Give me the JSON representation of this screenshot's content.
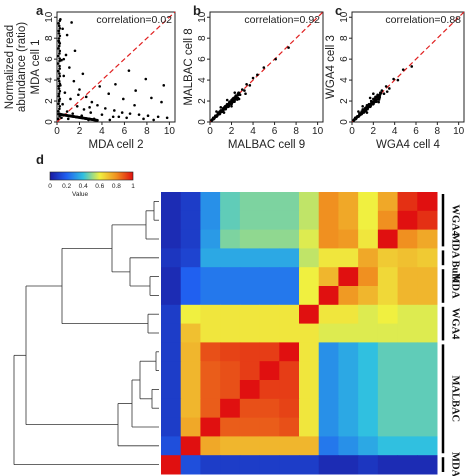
{
  "chart_data": [
    {
      "type": "scatter",
      "panel": "a",
      "annotation": "correlation=0.02",
      "xlabel": "MDA cell 2",
      "ylabel": "MDA cell 1",
      "ylabel2": "Normalized read",
      "ylabel3": "abundance (ratio)",
      "xlim": [
        0,
        10.5
      ],
      "ylim": [
        0,
        10.5
      ],
      "xticks": [
        0,
        2,
        4,
        6,
        8,
        10
      ],
      "yticks": [
        0,
        2,
        4,
        6,
        8,
        10
      ],
      "points": [
        [
          0.3,
          9.8
        ],
        [
          0.5,
          8.9
        ],
        [
          0.2,
          7.6
        ],
        [
          0.8,
          6.4
        ],
        [
          0.4,
          5.9
        ],
        [
          1.1,
          5.2
        ],
        [
          0.6,
          4.4
        ],
        [
          1.5,
          3.9
        ],
        [
          0.3,
          3.5
        ],
        [
          2.0,
          3.1
        ],
        [
          0.7,
          2.8
        ],
        [
          2.6,
          2.4
        ],
        [
          1.2,
          2.2
        ],
        [
          3.1,
          1.9
        ],
        [
          0.5,
          1.7
        ],
        [
          3.6,
          1.6
        ],
        [
          1.8,
          1.5
        ],
        [
          4.3,
          1.3
        ],
        [
          2.4,
          1.2
        ],
        [
          5.1,
          1.1
        ],
        [
          0.9,
          1.0
        ],
        [
          5.8,
          0.9
        ],
        [
          3.0,
          0.9
        ],
        [
          6.5,
          0.8
        ],
        [
          1.4,
          0.8
        ],
        [
          7.3,
          0.7
        ],
        [
          4.0,
          0.7
        ],
        [
          8.1,
          0.6
        ],
        [
          2.2,
          0.6
        ],
        [
          9.0,
          0.5
        ],
        [
          5.0,
          0.5
        ],
        [
          9.8,
          0.4
        ],
        [
          0.4,
          0.4
        ],
        [
          6.2,
          0.4
        ],
        [
          3.3,
          0.3
        ],
        [
          7.7,
          0.3
        ],
        [
          1.0,
          0.3
        ],
        [
          8.6,
          0.2
        ],
        [
          4.7,
          0.2
        ],
        [
          2.8,
          0.2
        ],
        [
          5.5,
          0.5
        ],
        [
          6.9,
          1.6
        ],
        [
          8.4,
          2.3
        ],
        [
          7.0,
          3.0
        ],
        [
          9.3,
          1.9
        ],
        [
          4.6,
          2.7
        ],
        [
          5.9,
          2.2
        ],
        [
          3.8,
          3.4
        ],
        [
          2.3,
          4.6
        ],
        [
          1.6,
          6.8
        ],
        [
          0.9,
          8.3
        ],
        [
          1.3,
          9.5
        ],
        [
          7.9,
          4.1
        ],
        [
          9.5,
          3.5
        ],
        [
          6.4,
          4.9
        ],
        [
          5.2,
          3.6
        ],
        [
          0.6,
          6.0
        ],
        [
          1.9,
          2.6
        ],
        [
          2.9,
          1.4
        ],
        [
          0.2,
          2.1
        ]
      ],
      "diagonal": true
    },
    {
      "type": "scatter",
      "panel": "b",
      "annotation": "correlation=0.92",
      "xlabel": "MALBAC cell 9",
      "ylabel": "MALBAC cell 8",
      "xlim": [
        0,
        10.5
      ],
      "ylim": [
        0,
        10.5
      ],
      "xticks": [
        0,
        2,
        4,
        6,
        8,
        10
      ],
      "yticks": [
        0,
        2,
        4,
        6,
        8,
        10
      ],
      "points": [
        [
          0.3,
          0.4
        ],
        [
          0.5,
          0.6
        ],
        [
          0.7,
          0.7
        ],
        [
          0.8,
          0.9
        ],
        [
          0.9,
          1.0
        ],
        [
          1.0,
          1.1
        ],
        [
          1.1,
          1.0
        ],
        [
          1.2,
          1.3
        ],
        [
          1.3,
          1.2
        ],
        [
          1.4,
          1.5
        ],
        [
          1.5,
          1.4
        ],
        [
          1.6,
          1.7
        ],
        [
          1.7,
          1.6
        ],
        [
          1.8,
          1.9
        ],
        [
          1.9,
          1.8
        ],
        [
          2.0,
          2.1
        ],
        [
          2.1,
          1.9
        ],
        [
          2.2,
          2.3
        ],
        [
          2.3,
          2.2
        ],
        [
          2.4,
          2.5
        ],
        [
          2.5,
          2.3
        ],
        [
          2.6,
          2.7
        ],
        [
          2.8,
          2.6
        ],
        [
          3.0,
          3.1
        ],
        [
          3.2,
          3.0
        ],
        [
          3.4,
          3.6
        ],
        [
          3.7,
          3.5
        ],
        [
          4.0,
          4.2
        ],
        [
          4.4,
          4.5
        ],
        [
          5.0,
          5.2
        ],
        [
          6.1,
          6.0
        ],
        [
          7.3,
          7.1
        ],
        [
          1.0,
          1.4
        ],
        [
          1.3,
          0.9
        ],
        [
          1.6,
          2.1
        ],
        [
          2.0,
          1.5
        ],
        [
          2.3,
          2.8
        ],
        [
          2.7,
          2.2
        ],
        [
          0.6,
          1.0
        ],
        [
          3.3,
          2.7
        ]
      ],
      "diagonal": true
    },
    {
      "type": "scatter",
      "panel": "c",
      "annotation": "correlation=0.88",
      "xlabel": "WGA4 cell 4",
      "ylabel": "WGA4 cell 3",
      "xlim": [
        0,
        10.5
      ],
      "ylim": [
        0,
        10.5
      ],
      "xticks": [
        0,
        2,
        4,
        6,
        8,
        10
      ],
      "yticks": [
        0,
        2,
        4,
        6,
        8,
        10
      ],
      "points": [
        [
          0.3,
          0.4
        ],
        [
          0.5,
          0.5
        ],
        [
          0.7,
          0.8
        ],
        [
          0.8,
          0.7
        ],
        [
          0.9,
          1.0
        ],
        [
          1.0,
          1.2
        ],
        [
          1.1,
          0.9
        ],
        [
          1.2,
          1.3
        ],
        [
          1.3,
          1.1
        ],
        [
          1.4,
          1.6
        ],
        [
          1.5,
          1.4
        ],
        [
          1.6,
          1.7
        ],
        [
          1.7,
          1.5
        ],
        [
          1.8,
          2.0
        ],
        [
          1.9,
          1.8
        ],
        [
          2.0,
          2.2
        ],
        [
          2.1,
          1.9
        ],
        [
          2.2,
          2.4
        ],
        [
          2.3,
          2.1
        ],
        [
          2.4,
          2.6
        ],
        [
          2.6,
          2.4
        ],
        [
          2.8,
          3.0
        ],
        [
          3.0,
          2.7
        ],
        [
          3.2,
          3.4
        ],
        [
          3.5,
          3.2
        ],
        [
          3.9,
          4.1
        ],
        [
          4.3,
          4.0
        ],
        [
          4.8,
          5.0
        ],
        [
          5.6,
          5.3
        ],
        [
          1.0,
          1.5
        ],
        [
          1.4,
          0.9
        ],
        [
          2.0,
          2.7
        ],
        [
          2.5,
          1.9
        ],
        [
          0.6,
          1.0
        ],
        [
          1.7,
          2.3
        ],
        [
          3.3,
          2.9
        ]
      ],
      "diagonal": true
    },
    {
      "type": "heatmap",
      "panel": "d",
      "legend_ticks": [
        "0",
        "0.2",
        "0.4",
        "0.6",
        "0.8",
        "1"
      ],
      "legend_label": "Value",
      "group_labels": [
        "WGA4",
        "MDA Bulk",
        "MDA",
        "WGA4",
        "MALBAC",
        "MDA"
      ],
      "col_blocks": [
        1,
        1,
        1,
        1,
        1,
        1,
        1,
        1,
        1,
        1,
        1,
        1,
        1,
        1
      ],
      "matrix": [
        [
          0.05,
          0.1,
          0.3,
          0.45,
          0.48,
          0.48,
          0.48,
          0.55,
          0.8,
          0.75,
          0.6,
          0.75,
          0.95,
          1.0
        ],
        [
          0.05,
          0.1,
          0.3,
          0.45,
          0.48,
          0.48,
          0.48,
          0.55,
          0.8,
          0.75,
          0.6,
          0.8,
          1.0,
          0.95
        ],
        [
          0.05,
          0.1,
          0.32,
          0.48,
          0.5,
          0.5,
          0.5,
          0.58,
          0.8,
          0.78,
          0.62,
          1.0,
          0.8,
          0.75
        ],
        [
          0.08,
          0.12,
          0.35,
          0.35,
          0.35,
          0.35,
          0.35,
          0.55,
          0.62,
          0.62,
          0.75,
          0.68,
          0.7,
          0.68
        ],
        [
          0.05,
          0.2,
          0.25,
          0.25,
          0.25,
          0.25,
          0.25,
          0.6,
          0.72,
          1.0,
          0.8,
          0.65,
          0.72,
          0.72
        ],
        [
          0.05,
          0.2,
          0.25,
          0.25,
          0.25,
          0.25,
          0.25,
          0.6,
          1.0,
          0.78,
          0.72,
          0.65,
          0.72,
          0.72
        ],
        [
          0.1,
          0.6,
          0.62,
          0.62,
          0.62,
          0.62,
          0.62,
          1.0,
          0.62,
          0.62,
          0.58,
          0.6,
          0.58,
          0.58
        ],
        [
          0.1,
          0.7,
          0.62,
          0.62,
          0.62,
          0.62,
          0.62,
          0.62,
          0.58,
          0.58,
          0.58,
          0.58,
          0.58,
          0.58
        ],
        [
          0.1,
          0.72,
          0.9,
          0.92,
          0.93,
          0.93,
          1.0,
          0.62,
          0.3,
          0.35,
          0.4,
          0.45,
          0.45,
          0.45
        ],
        [
          0.1,
          0.72,
          0.88,
          0.9,
          0.93,
          1.0,
          0.93,
          0.62,
          0.3,
          0.35,
          0.4,
          0.45,
          0.45,
          0.45
        ],
        [
          0.1,
          0.72,
          0.88,
          0.9,
          1.0,
          0.93,
          0.93,
          0.62,
          0.3,
          0.35,
          0.4,
          0.45,
          0.45,
          0.45
        ],
        [
          0.1,
          0.72,
          0.88,
          1.0,
          0.9,
          0.9,
          0.92,
          0.62,
          0.3,
          0.35,
          0.4,
          0.45,
          0.45,
          0.45
        ],
        [
          0.1,
          0.75,
          1.0,
          0.88,
          0.88,
          0.88,
          0.9,
          0.62,
          0.3,
          0.35,
          0.4,
          0.45,
          0.45,
          0.45
        ],
        [
          0.15,
          1.0,
          0.75,
          0.72,
          0.72,
          0.72,
          0.72,
          0.72,
          0.25,
          0.3,
          0.35,
          0.4,
          0.4,
          0.4
        ],
        [
          1.0,
          0.15,
          0.1,
          0.1,
          0.1,
          0.1,
          0.1,
          0.1,
          0.05,
          0.05,
          0.08,
          0.05,
          0.05,
          0.05
        ]
      ]
    }
  ],
  "colors": {
    "points": "#000000",
    "diagonal": "#e02020",
    "colorbar": [
      "#1a1aa0",
      "#2060f0",
      "#30c0e0",
      "#f0f040",
      "#f09020",
      "#e01010"
    ]
  }
}
